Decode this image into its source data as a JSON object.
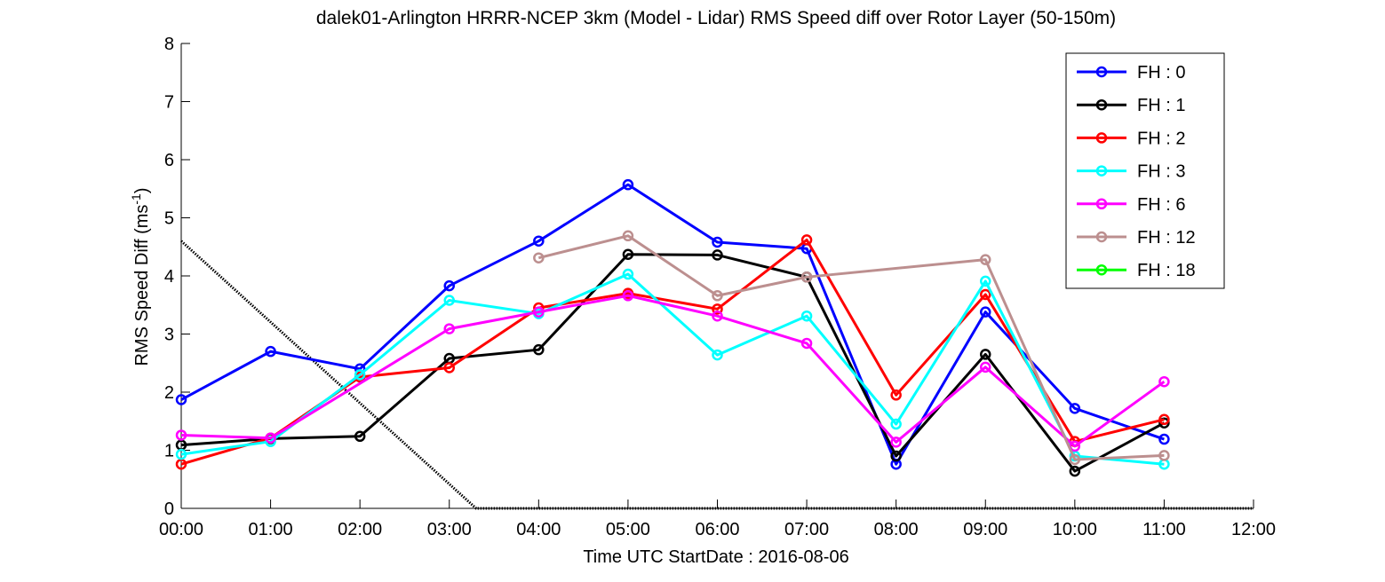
{
  "chart_data": {
    "type": "line",
    "title": "dalek01-Arlington HRRR-NCEP 3km (Model - Lidar) RMS Speed diff over Rotor Layer (50-150m)",
    "xlabel": "Time UTC    StartDate : 2016-08-06",
    "ylabel_main": "RMS Speed Diff (ms",
    "ylabel_sup": "-1",
    "ylabel_close": ")",
    "xlim": [
      0,
      12
    ],
    "ylim": [
      0,
      8
    ],
    "x_ticks": [
      0,
      1,
      2,
      3,
      4,
      5,
      6,
      7,
      8,
      9,
      10,
      11,
      12
    ],
    "x_tick_labels": [
      "00:00",
      "01:00",
      "02:00",
      "03:00",
      "04:00",
      "05:00",
      "06:00",
      "07:00",
      "08:00",
      "09:00",
      "10:00",
      "11:00",
      "12:00"
    ],
    "y_ticks": [
      0,
      1,
      2,
      3,
      4,
      5,
      6,
      7,
      8
    ],
    "y_tick_labels": [
      "0",
      "1",
      "2",
      "3",
      "4",
      "5",
      "6",
      "7",
      "8"
    ],
    "grid": false,
    "legend_position": "top-right",
    "series": [
      {
        "name": "FH : 0",
        "color": "#0000ff",
        "x": [
          0,
          1,
          2,
          3,
          4,
          5,
          6,
          7,
          8,
          9,
          10,
          11
        ],
        "y": [
          1.87,
          2.7,
          2.4,
          3.83,
          4.6,
          5.57,
          4.58,
          4.47,
          0.76,
          3.38,
          1.72,
          1.19
        ]
      },
      {
        "name": "FH : 1",
        "color": "#000000",
        "x": [
          0,
          1,
          2,
          3,
          4,
          5,
          6,
          7,
          8,
          9,
          10,
          11
        ],
        "y": [
          1.09,
          1.2,
          1.24,
          2.58,
          2.73,
          4.37,
          4.36,
          3.98,
          0.9,
          2.65,
          0.64,
          1.47
        ]
      },
      {
        "name": "FH : 2",
        "color": "#ff0000",
        "x": [
          0,
          1,
          2,
          3,
          4,
          5,
          6,
          7,
          8,
          9,
          10,
          11
        ],
        "y": [
          0.76,
          1.21,
          2.26,
          2.42,
          3.45,
          3.7,
          3.43,
          4.62,
          1.95,
          3.68,
          1.15,
          1.53
        ]
      },
      {
        "name": "FH : 3",
        "color": "#00ffff",
        "x": [
          0,
          1,
          2,
          3,
          4,
          5,
          6,
          7,
          8,
          9,
          10,
          11
        ],
        "y": [
          0.93,
          1.15,
          2.3,
          3.58,
          3.35,
          4.03,
          2.64,
          3.31,
          1.45,
          3.91,
          0.9,
          0.76
        ]
      },
      {
        "name": "FH : 6",
        "color": "#ff00ff",
        "x": [
          0,
          1,
          3,
          4,
          5,
          6,
          7,
          8,
          9,
          10,
          11
        ],
        "y": [
          1.26,
          1.21,
          3.09,
          3.38,
          3.66,
          3.31,
          2.84,
          1.14,
          2.43,
          1.07,
          2.18
        ]
      },
      {
        "name": "FH : 12",
        "color": "#bc8f8f",
        "x": [
          4,
          5,
          6,
          7,
          9,
          10,
          11
        ],
        "y": [
          4.31,
          4.69,
          3.66,
          3.98,
          4.28,
          0.84,
          0.91
        ]
      },
      {
        "name": "FH : 18",
        "color": "#00ff00",
        "x": [],
        "y": []
      }
    ],
    "gap_lines": [
      {
        "color": "#ff00ff",
        "x": [
          1,
          3
        ],
        "y": [
          1.21,
          3.09
        ]
      },
      {
        "color": "#bc8f8f",
        "x": [
          7,
          9
        ],
        "y": [
          3.98,
          4.28
        ]
      }
    ],
    "reference_line": {
      "color": "#000000",
      "x": [
        0,
        3.3,
        12
      ],
      "y": [
        4.6,
        0,
        0
      ]
    }
  }
}
